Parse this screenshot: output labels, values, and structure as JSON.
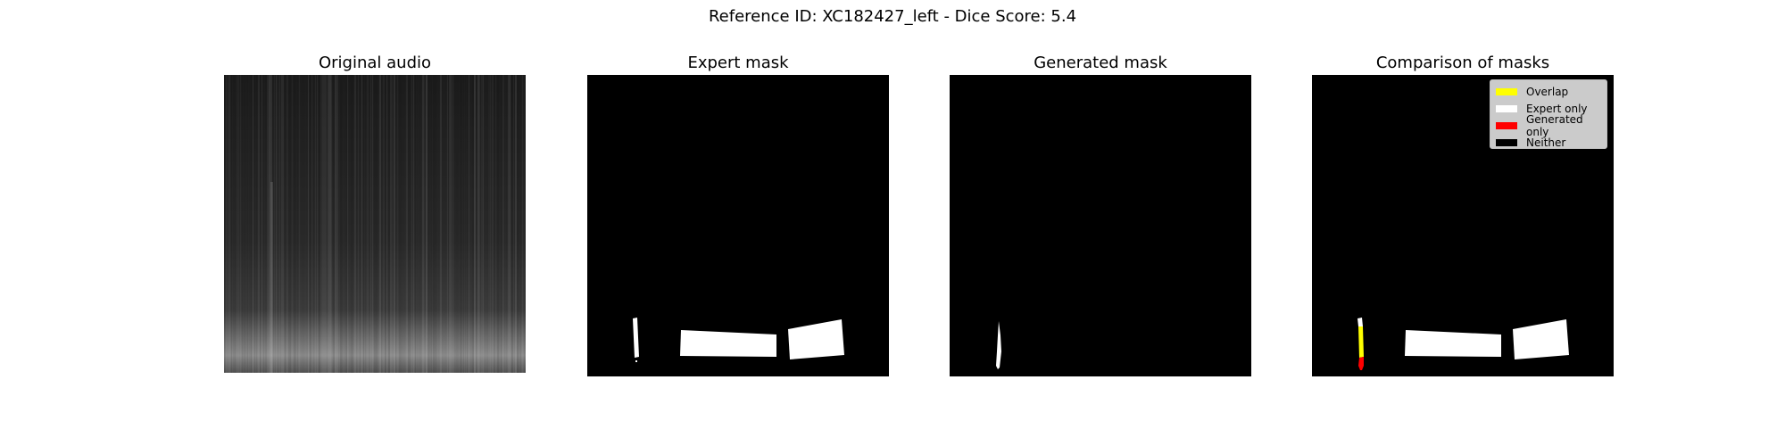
{
  "figure": {
    "suptitle": "Reference ID: XC182427_left - Dice Score: 5.4"
  },
  "panels": [
    {
      "title": "Original audio"
    },
    {
      "title": "Expert mask"
    },
    {
      "title": "Generated mask"
    },
    {
      "title": "Comparison of masks"
    }
  ],
  "legend": [
    {
      "label": "Overlap",
      "color": "#ffff00"
    },
    {
      "label": "Expert only",
      "color": "#ffffff"
    },
    {
      "label": "Generated only",
      "color": "#ff0000"
    },
    {
      "label": "Neither",
      "color": "#000000"
    }
  ],
  "chart_data": {
    "type": "heatmap",
    "title": "Reference ID: XC182427_left - Dice Score: 5.4",
    "reference_id": "XC182427_left",
    "dice_score": 5.4,
    "subplots": [
      "Original audio",
      "Expert mask",
      "Generated mask",
      "Comparison of masks"
    ],
    "axes_visible": false,
    "legend_location": "upper right",
    "colors": {
      "overlap": "#ffff00",
      "expert_only": "#ffffff",
      "generated_only": "#ff0000",
      "neither": "#000000"
    }
  }
}
